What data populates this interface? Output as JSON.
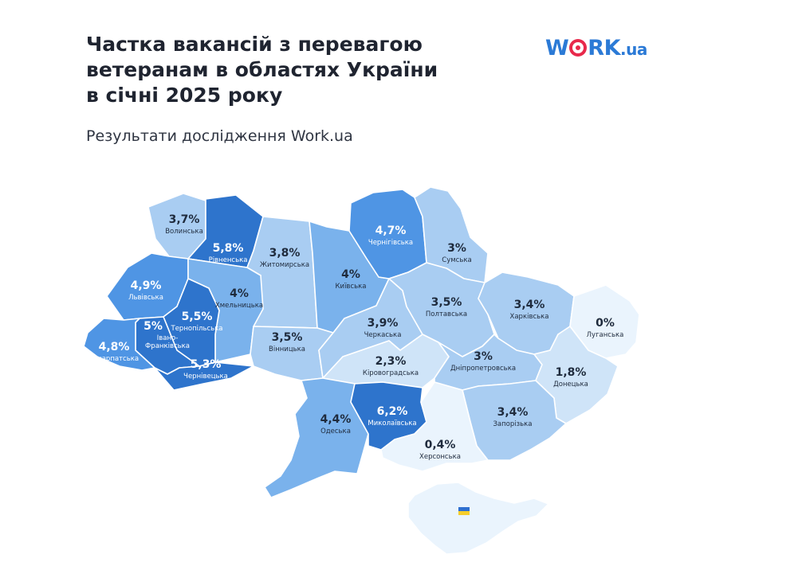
{
  "header": {
    "title_lines": [
      "Частка вакансій з перевагою",
      "ветеранам в областях України",
      "в січні 2025 року"
    ],
    "subtitle": "Результати дослідження Work.ua"
  },
  "logo": {
    "part1": "W",
    "part2": "RK",
    "part3": ".ua"
  },
  "colors": {
    "scale": [
      "#eaf4fd",
      "#cfe4f8",
      "#a9cdf2",
      "#7ab2ec",
      "#4f95e4",
      "#2e74cc"
    ],
    "text_dark": "#1f2b3d",
    "text_light": "#ffffff",
    "logo_blue": "#2b7ad6",
    "logo_red": "#e8294b"
  },
  "crimea": {
    "icon": "ukraine-flag-icon"
  },
  "regions": [
    {
      "id": "volynska",
      "name": "Волинська",
      "value_label": "3,7%",
      "value": 3.7
    },
    {
      "id": "rivnenska",
      "name": "Рівненська",
      "value_label": "5,8%",
      "value": 5.8
    },
    {
      "id": "zhytomyrska",
      "name": "Житомирська",
      "value_label": "3,8%",
      "value": 3.8
    },
    {
      "id": "kyivska",
      "name": "Київська",
      "value_label": "4%",
      "value": 4.0
    },
    {
      "id": "chernihivska",
      "name": "Чернігівська",
      "value_label": "4,7%",
      "value": 4.7
    },
    {
      "id": "sumska",
      "name": "Сумська",
      "value_label": "3%",
      "value": 3.0
    },
    {
      "id": "lvivska",
      "name": "Львівська",
      "value_label": "4,9%",
      "value": 4.9
    },
    {
      "id": "khmelnytska",
      "name": "Хмельницька",
      "value_label": "4%",
      "value": 4.0
    },
    {
      "id": "ternopilska",
      "name": "Тернопільська",
      "value_label": "5,5%",
      "value": 5.5
    },
    {
      "id": "ivano-frankivska",
      "name": "Івано-Франківська",
      "value_label": "5%",
      "value": 5.0
    },
    {
      "id": "zakarpatska",
      "name": "Закарпатська",
      "value_label": "4,8%",
      "value": 4.8
    },
    {
      "id": "chernivetska",
      "name": "Чернівецька",
      "value_label": "5,3%",
      "value": 5.3
    },
    {
      "id": "vinnytska",
      "name": "Вінницька",
      "value_label": "3,5%",
      "value": 3.5
    },
    {
      "id": "cherkaska",
      "name": "Черкаська",
      "value_label": "3,9%",
      "value": 3.9
    },
    {
      "id": "poltavska",
      "name": "Полтавська",
      "value_label": "3,5%",
      "value": 3.5
    },
    {
      "id": "kharkivska",
      "name": "Харківська",
      "value_label": "3,4%",
      "value": 3.4
    },
    {
      "id": "luhanska",
      "name": "Луганська",
      "value_label": "0%",
      "value": 0.0
    },
    {
      "id": "kirovohradska",
      "name": "Кіровоградська",
      "value_label": "2,3%",
      "value": 2.3
    },
    {
      "id": "dnipropetrovska",
      "name": "Дніпропетровська",
      "value_label": "3%",
      "value": 3.0
    },
    {
      "id": "donetska",
      "name": "Донецька",
      "value_label": "1,8%",
      "value": 1.8
    },
    {
      "id": "odeska",
      "name": "Одеська",
      "value_label": "4,4%",
      "value": 4.4
    },
    {
      "id": "mykolaivska",
      "name": "Миколаївська",
      "value_label": "6,2%",
      "value": 6.2
    },
    {
      "id": "zaporizka",
      "name": "Запорізька",
      "value_label": "3,4%",
      "value": 3.4
    },
    {
      "id": "khersonska",
      "name": "Херсонська",
      "value_label": "0,4%",
      "value": 0.4
    }
  ]
}
